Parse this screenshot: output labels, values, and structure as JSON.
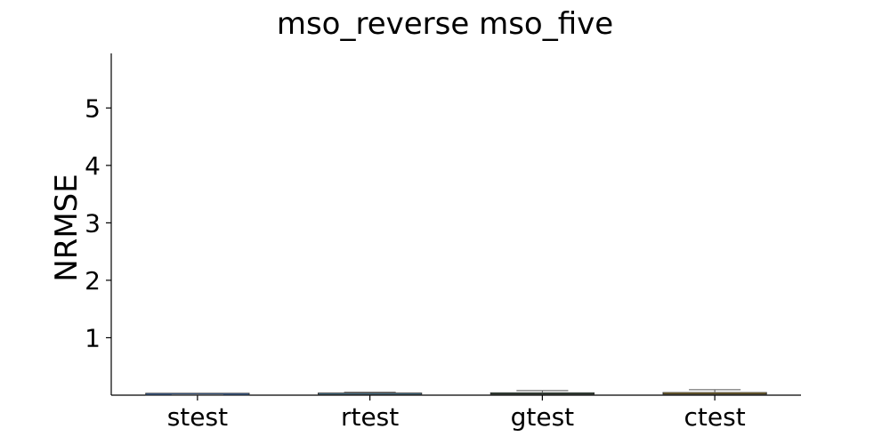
{
  "chart_data": {
    "type": "box",
    "title": "mso_reverse mso_five",
    "xlabel": "",
    "ylabel": "NRMSE",
    "ylim": [
      0,
      5.95
    ],
    "yticks": [
      1,
      2,
      3,
      4,
      5
    ],
    "categories": [
      "stest",
      "rtest",
      "gtest",
      "ctest"
    ],
    "colors": {
      "stest": "#3b6fb6",
      "rtest": "#55a0c8",
      "gtest": "#5aa36a",
      "ctest": "#c9a227"
    },
    "boxes": [
      {
        "category": "stest",
        "whisker_low": 0.0,
        "q1": 0.001,
        "median": 0.002,
        "q3": 0.004,
        "whisker_high": 0.008
      },
      {
        "category": "rtest",
        "whisker_low": 0.0,
        "q1": 0.005,
        "median": 0.012,
        "q3": 0.025,
        "whisker_high": 0.05
      },
      {
        "category": "gtest",
        "whisker_low": 0.0,
        "q1": 0.01,
        "median": 0.022,
        "q3": 0.04,
        "whisker_high": 0.08
      },
      {
        "category": "ctest",
        "whisker_low": 0.0,
        "q1": 0.008,
        "median": 0.02,
        "q3": 0.045,
        "whisker_high": 0.095
      }
    ]
  }
}
